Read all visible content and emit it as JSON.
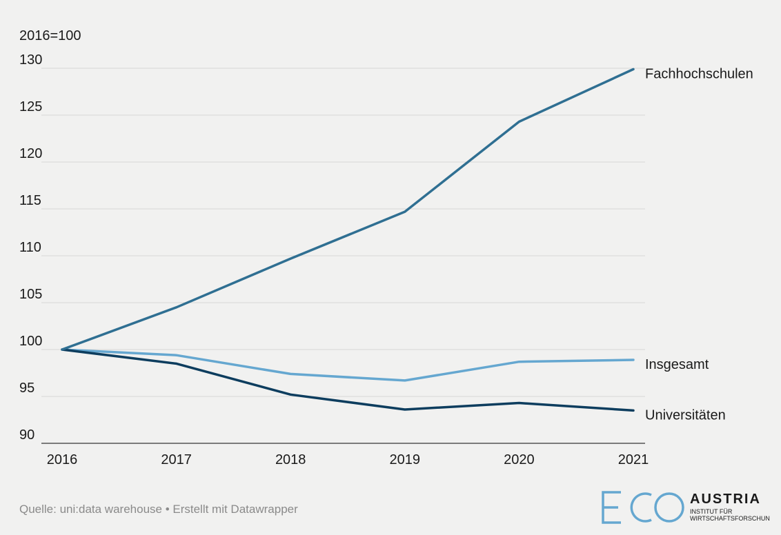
{
  "chart_data": {
    "type": "line",
    "unit_label": "2016=100",
    "x": [
      "2016",
      "2017",
      "2018",
      "2019",
      "2020",
      "2021"
    ],
    "ylim": [
      90,
      130
    ],
    "yticks": [
      90,
      95,
      100,
      105,
      110,
      115,
      120,
      125,
      130
    ],
    "grid": true,
    "legend": "direct labels at line ends",
    "series": [
      {
        "name": "Fachhochschulen",
        "color": "#2f6f92",
        "values": [
          100,
          104.5,
          109.7,
          114.7,
          124.3,
          129.9
        ]
      },
      {
        "name": "Insgesamt",
        "color": "#65a7d0",
        "values": [
          100,
          99.4,
          97.4,
          96.7,
          98.7,
          98.9
        ]
      },
      {
        "name": "Universitäten",
        "color": "#0d3d5e",
        "values": [
          100,
          98.5,
          95.2,
          93.6,
          94.3,
          93.5
        ]
      }
    ]
  },
  "source_text": "Quelle: uni:data warehouse • Erstellt mit Datawrapper",
  "logo": {
    "mark": "ECO",
    "name": "AUSTRIA",
    "subtitle_line1": "INSTITUT FÜR",
    "subtitle_line2": "WIRTSCHAFTSFORSCHUNG"
  }
}
